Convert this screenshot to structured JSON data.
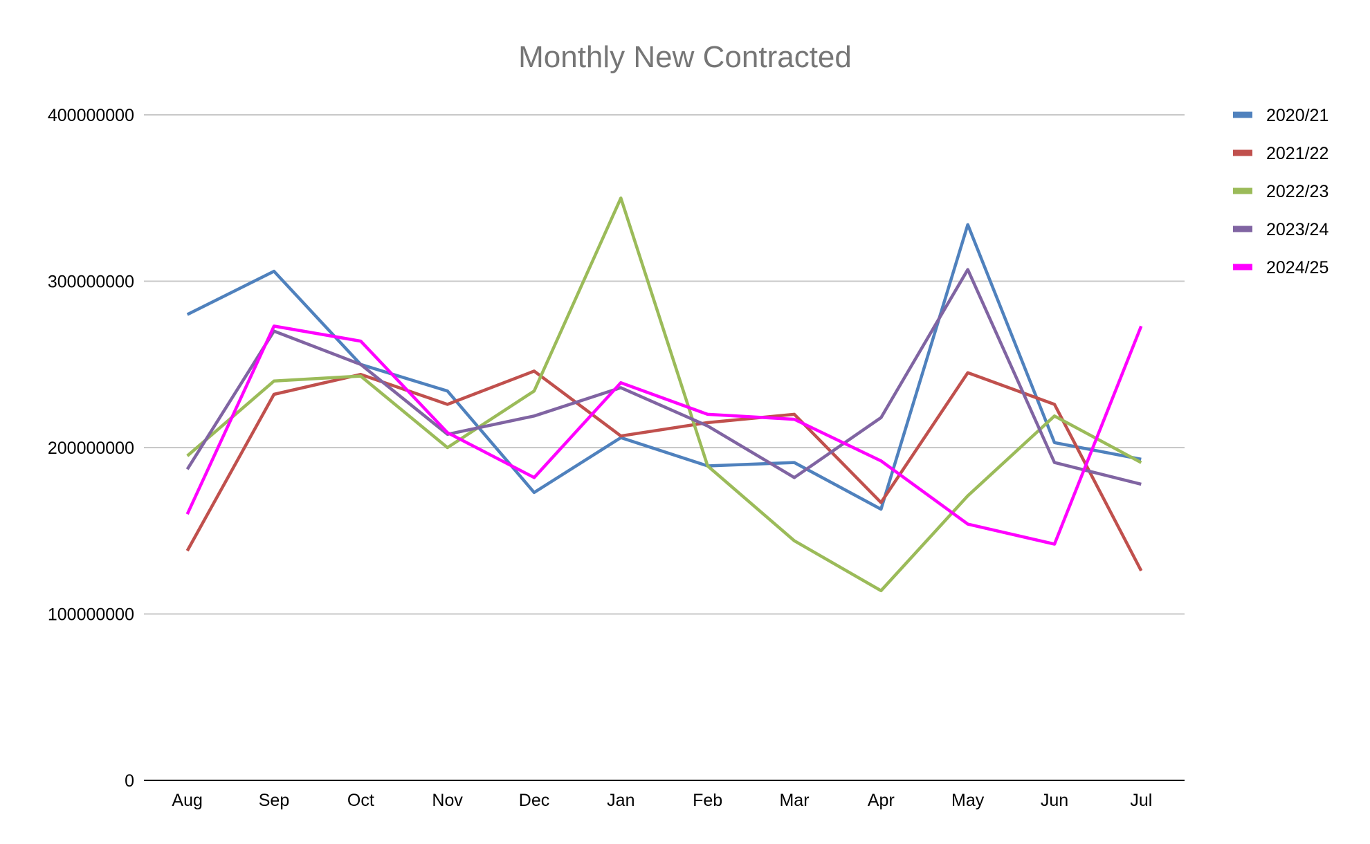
{
  "chart_data": {
    "type": "line",
    "title": "Monthly New Contracted",
    "xlabel": "",
    "ylabel": "",
    "categories": [
      "Aug",
      "Sep",
      "Oct",
      "Nov",
      "Dec",
      "Jan",
      "Feb",
      "Mar",
      "Apr",
      "May",
      "Jun",
      "Jul"
    ],
    "ylim": [
      0,
      400000000
    ],
    "yticks": [
      0,
      100000000,
      200000000,
      300000000,
      400000000
    ],
    "ytick_labels": [
      "0",
      "100000000",
      "200000000",
      "300000000",
      "400000000"
    ],
    "grid": true,
    "legend_position": "right",
    "series": [
      {
        "name": "2020/21",
        "color": "#4f81bd",
        "values": [
          280000000,
          306000000,
          250000000,
          234000000,
          173000000,
          206000000,
          189000000,
          191000000,
          163000000,
          334000000,
          203000000,
          193000000
        ]
      },
      {
        "name": "2021/22",
        "color": "#c0504d",
        "values": [
          138000000,
          232000000,
          244000000,
          226000000,
          246000000,
          207000000,
          215000000,
          220000000,
          167000000,
          245000000,
          226000000,
          126000000
        ]
      },
      {
        "name": "2022/23",
        "color": "#9bbb59",
        "values": [
          195000000,
          240000000,
          243000000,
          200000000,
          234000000,
          350000000,
          189000000,
          144000000,
          114000000,
          171000000,
          219000000,
          191000000
        ]
      },
      {
        "name": "2023/24",
        "color": "#8064a2",
        "values": [
          187000000,
          270000000,
          250000000,
          208000000,
          219000000,
          236000000,
          213000000,
          182000000,
          218000000,
          307000000,
          191000000,
          178000000
        ]
      },
      {
        "name": "2024/25",
        "color": "#ff00ff",
        "values": [
          160000000,
          273000000,
          264000000,
          209000000,
          182000000,
          239000000,
          220000000,
          217000000,
          192000000,
          154000000,
          142000000,
          273000000
        ]
      }
    ]
  }
}
